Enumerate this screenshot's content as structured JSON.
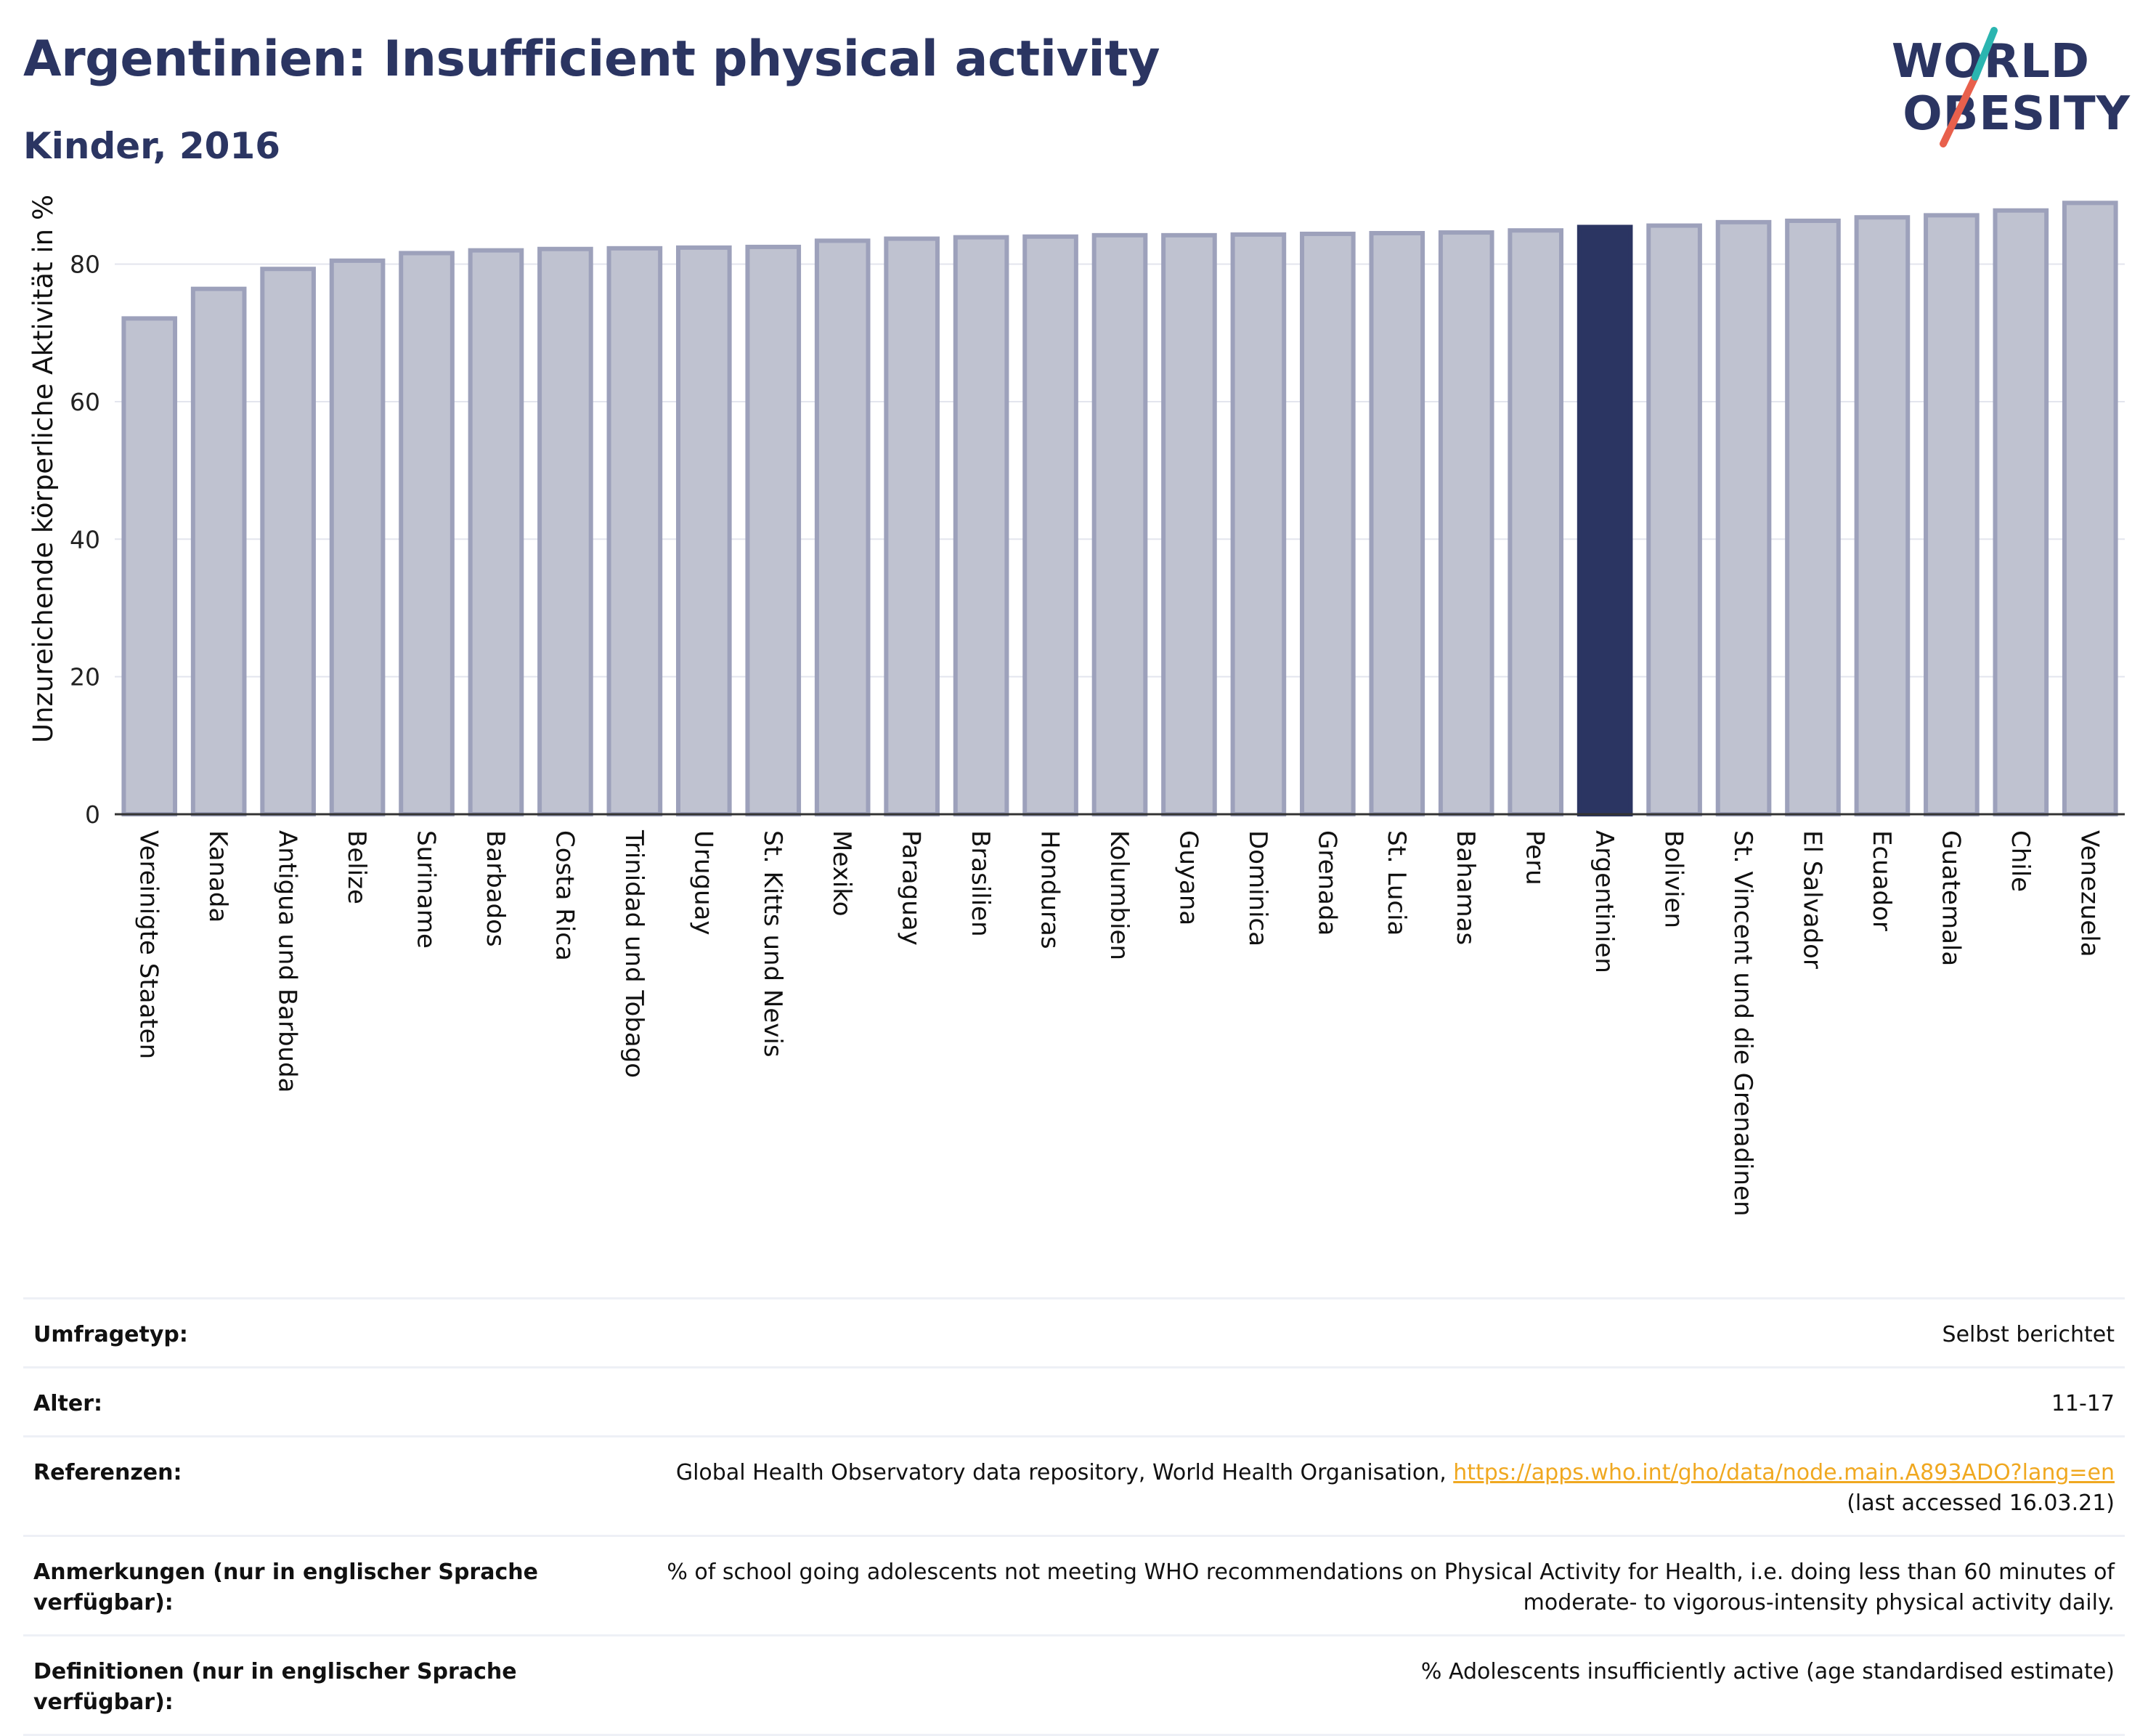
{
  "header": {
    "title": "Argentinien: Insufficient physical activity",
    "subtitle": "Kinder, 2016"
  },
  "logo": {
    "line1": "WORLD",
    "line2": "OBESITY"
  },
  "colors": {
    "bar_fill": "#bfc2d0",
    "bar_stroke": "#9da1bb",
    "highlight": "#2b3562",
    "accent_red": "#e8604c",
    "accent_teal": "#2bb5b0",
    "link": "#f0a820"
  },
  "chart_data": {
    "type": "bar",
    "ylabel": "Unzureichende körperliche Aktivität in %",
    "ylim": [
      0,
      92
    ],
    "yticks": [
      0,
      20,
      40,
      60,
      80
    ],
    "grid": true,
    "highlight": "Argentinien",
    "categories": [
      "Vereinigte Staaten",
      "Kanada",
      "Antigua und Barbuda",
      "Belize",
      "Suriname",
      "Barbados",
      "Costa Rica",
      "Trinidad und Tobago",
      "Uruguay",
      "St. Kitts und Nevis",
      "Mexiko",
      "Paraguay",
      "Brasilien",
      "Honduras",
      "Kolumbien",
      "Guyana",
      "Dominica",
      "Grenada",
      "St. Lucia",
      "Bahamas",
      "Peru",
      "Argentinien",
      "Bolivien",
      "St. Vincent und die Grenadinen",
      "El Salvador",
      "Ecuador",
      "Guatemala",
      "Chile",
      "Venezuela"
    ],
    "values": [
      72.1,
      76.4,
      79.3,
      80.5,
      81.6,
      82.0,
      82.2,
      82.3,
      82.4,
      82.5,
      83.4,
      83.7,
      83.9,
      84.0,
      84.2,
      84.2,
      84.3,
      84.4,
      84.5,
      84.6,
      84.9,
      85.4,
      85.6,
      86.1,
      86.3,
      86.8,
      87.1,
      87.8,
      88.9
    ]
  },
  "meta": {
    "rows": [
      {
        "label": "Umfragetyp:",
        "value": "Selbst berichtet"
      },
      {
        "label": "Alter:",
        "value": "11-17"
      },
      {
        "label": "Referenzen:",
        "value": "Global Health Observatory data repository, World Health Organisation, ",
        "link": "https://apps.who.int/gho/data/node.main.A893ADO?lang=en",
        "value2": "(last accessed 16.03.21)"
      },
      {
        "label": "Anmerkungen (nur in englischer Sprache verfügbar):",
        "value": "% of school going adolescents not meeting WHO recommendations on Physical Activity for Health, i.e. doing less than 60 minutes of moderate- to vigorous-intensity physical activity daily."
      },
      {
        "label": "Definitionen (nur in englischer Sprache verfügbar):",
        "value": "% Adolescents insufficiently active (age standardised estimate)"
      }
    ]
  }
}
